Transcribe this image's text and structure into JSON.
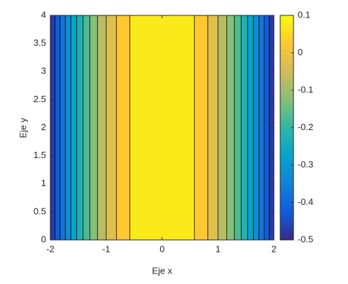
{
  "chart_data": {
    "type": "contourf",
    "xlabel": "Eje x",
    "ylabel": "Eje y",
    "xlim": [
      -2,
      2
    ],
    "ylim": [
      0,
      4
    ],
    "xticks": [
      -2,
      -1,
      0,
      1,
      2
    ],
    "yticks": [
      0,
      0.5,
      1,
      1.5,
      2,
      2.5,
      3,
      3.5,
      4
    ],
    "contour_x": [
      -2,
      -1.915,
      -1.826,
      -1.732,
      -1.633,
      -1.528,
      -1.414,
      -1.291,
      -1.155,
      -1,
      -0.816,
      -0.577,
      0.577,
      0.816,
      1,
      1.155,
      1.291,
      1.414,
      1.528,
      1.633,
      1.732,
      1.826,
      1.915,
      2
    ],
    "band_levels": [
      -0.5,
      -0.45,
      -0.4,
      -0.35,
      -0.3,
      -0.25,
      -0.2,
      -0.15,
      -0.1,
      -0.05,
      0,
      0.05,
      0,
      -0.05,
      -0.1,
      -0.15,
      -0.2,
      -0.25,
      -0.3,
      -0.35,
      -0.4,
      -0.45,
      -0.5
    ],
    "level_step": 0.05,
    "clim": [
      -0.5,
      0.1
    ],
    "cticks": [
      -0.5,
      -0.4,
      -0.3,
      -0.2,
      -0.1,
      0,
      0.1
    ],
    "colormap": [
      "#352a87",
      "#0f5cdd",
      "#1481d6",
      "#06a4ca",
      "#2eb7a4",
      "#87bf77",
      "#d1bb59",
      "#fec832",
      "#f9fb0e"
    ]
  }
}
